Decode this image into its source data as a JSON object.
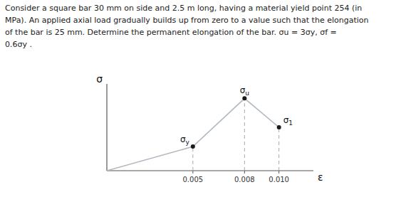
{
  "chart_data": {
    "type": "line",
    "title": [
      "Consider a square bar 30 mm on side and 2.5 m long, having a material yield point 254 (in",
      "MPa). An applied axial load gradually builds up from zero to a value such that the elongation",
      "of the bar is 25 mm. Determine the permanent elongation of the bar.  σu = 3σy,  σf =",
      "0.6σy ."
    ],
    "xlabel": "ε",
    "ylabel": "σ",
    "series": [
      {
        "type": "line",
        "color": "#b0b8c0",
        "x": [
          0.0,
          0.005,
          0.008,
          0.01
        ],
        "values": [
          0.0,
          1.0,
          3.0,
          1.8
        ]
      },
      {
        "type": "scatter",
        "marker": "circle",
        "color": "#1a1a1a",
        "x": [
          0.005,
          0.008,
          0.01
        ],
        "values": [
          1.0,
          3.0,
          1.8
        ]
      },
      {
        "type": "drop",
        "line_style": "dashed",
        "color": "#a0aab5",
        "x": [
          0.005,
          0.008,
          0.01
        ],
        "values": [
          1.0,
          3.0,
          1.8
        ]
      }
    ],
    "annotations": [
      {
        "text": "σy",
        "x": 0.005,
        "y": 1.0
      },
      {
        "text": "σu",
        "x": 0.008,
        "y": 3.0
      },
      {
        "text": "σ1",
        "x": 0.01,
        "y": 1.8
      }
    ],
    "xlim": [
      0,
      0.012
    ],
    "ylim": [
      0,
      3.6
    ],
    "xticks": [
      0.005,
      0.008,
      {
        "value": 0.01,
        "label": "0.010"
      }
    ],
    "yticks": [],
    "tick_labels": "x",
    "grid": false
  }
}
